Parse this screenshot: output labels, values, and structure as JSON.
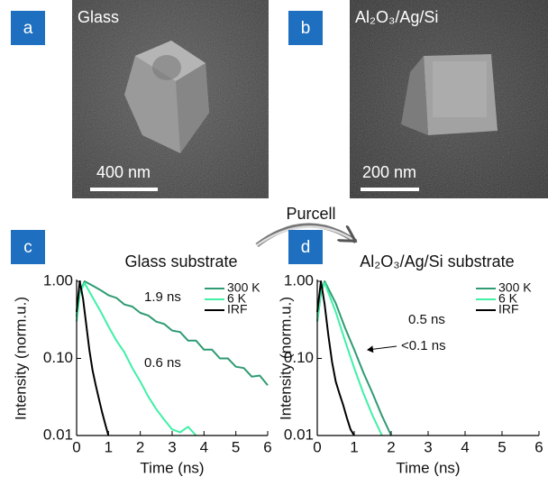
{
  "panels": [
    {
      "label": "a",
      "caption": "Glass",
      "scale_bar": "400 nm"
    },
    {
      "label": "b",
      "caption": "Al₂O₃/Ag/Si",
      "scale_bar": "200 nm"
    }
  ],
  "arrow_label": "Purcell",
  "chart_data": [
    {
      "type": "line",
      "panel_label": "c",
      "title": "Glass substrate",
      "x_label": "Time (ns)",
      "y_label": "Intensity (norm.u.)",
      "log_y": true,
      "legend": "upper right",
      "xlim": [
        0,
        6
      ],
      "xticks": [
        0,
        1,
        2,
        3,
        4,
        5,
        6
      ],
      "ylim": [
        0.01,
        1
      ],
      "yticks": [
        {
          "value": 1,
          "label": "1.00"
        },
        {
          "value": 0.1,
          "label": "0.10"
        },
        {
          "value": 0.01,
          "label": "0.01"
        }
      ],
      "annotations": [
        "1.9 ns",
        "0.6 ns"
      ],
      "series": [
        {
          "name": "300 K",
          "color": "#2e9b72",
          "x": [
            0,
            0.1,
            0.25,
            0.5,
            0.75,
            1,
            1.25,
            1.5,
            1.75,
            2,
            2.25,
            2.5,
            2.75,
            3,
            3.25,
            3.5,
            3.75,
            4,
            4.25,
            4.5,
            4.75,
            5,
            5.25,
            5.5,
            5.75,
            6
          ],
          "values": [
            0.35,
            0.7,
            1,
            0.88,
            0.77,
            0.66,
            0.61,
            0.5,
            0.47,
            0.39,
            0.36,
            0.3,
            0.28,
            0.23,
            0.22,
            0.17,
            0.17,
            0.13,
            0.13,
            0.1,
            0.1,
            0.078,
            0.075,
            0.058,
            0.06,
            0.045
          ]
        },
        {
          "name": "6 K",
          "color": "#3ff0a6",
          "x": [
            0,
            0.1,
            0.25,
            0.5,
            0.75,
            1,
            1.25,
            1.5,
            1.75,
            2,
            2.25,
            2.5,
            2.75,
            3,
            3.25,
            3.5,
            3.75
          ],
          "values": [
            0.3,
            0.7,
            0.95,
            0.62,
            0.41,
            0.26,
            0.17,
            0.12,
            0.075,
            0.05,
            0.032,
            0.022,
            0.016,
            0.012,
            0.011,
            0.013,
            0.01
          ]
        },
        {
          "name": "IRF",
          "color": "#000000",
          "x": [
            0,
            0.1,
            0.2,
            0.3,
            0.4,
            0.5,
            0.6,
            0.7,
            0.8,
            0.9,
            1
          ],
          "values": [
            0.4,
            1,
            0.6,
            0.28,
            0.13,
            0.07,
            0.045,
            0.03,
            0.02,
            0.014,
            0.01
          ]
        }
      ]
    },
    {
      "type": "line",
      "panel_label": "d",
      "title": "Al₂O₃/Ag/Si substrate",
      "x_label": "Time (ns)",
      "y_label": "Intensity (norm.u.)",
      "log_y": true,
      "legend": "upper right",
      "xlim": [
        0,
        6
      ],
      "xticks": [
        0,
        1,
        2,
        3,
        4,
        5,
        6
      ],
      "ylim": [
        0.01,
        1
      ],
      "yticks": [
        {
          "value": 1,
          "label": "1.00"
        },
        {
          "value": 0.1,
          "label": "0.10"
        },
        {
          "value": 0.01,
          "label": "0.01"
        }
      ],
      "annotations": [
        "0.5 ns",
        "<0.1 ns"
      ],
      "series": [
        {
          "name": "300 K",
          "color": "#2e9b72",
          "x": [
            0,
            0.1,
            0.2,
            0.5,
            0.75,
            1,
            1.25,
            1.5,
            1.75,
            2
          ],
          "values": [
            0.3,
            0.7,
            1,
            0.52,
            0.25,
            0.13,
            0.065,
            0.035,
            0.018,
            0.01
          ]
        },
        {
          "name": "6 K",
          "color": "#3ff0a6",
          "x": [
            0,
            0.1,
            0.2,
            0.5,
            0.75,
            1,
            1.25,
            1.5,
            1.75
          ],
          "values": [
            0.3,
            0.75,
            0.95,
            0.4,
            0.17,
            0.075,
            0.035,
            0.018,
            0.01
          ]
        },
        {
          "name": "IRF",
          "color": "#000000",
          "x": [
            0,
            0.1,
            0.2,
            0.3,
            0.4,
            0.5,
            0.6,
            0.7,
            0.8,
            0.9,
            1
          ],
          "values": [
            0.4,
            1,
            0.5,
            0.2,
            0.09,
            0.05,
            0.035,
            0.025,
            0.017,
            0.012,
            0.01
          ]
        }
      ]
    }
  ]
}
